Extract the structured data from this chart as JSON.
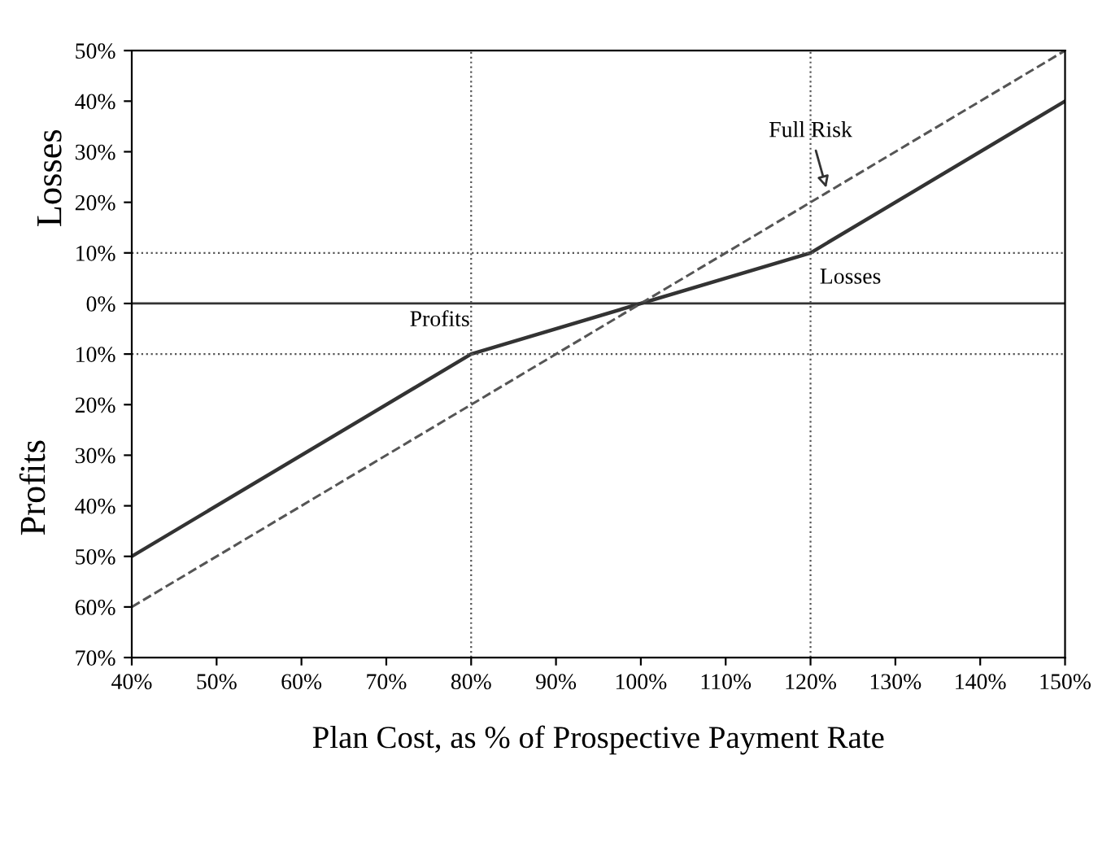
{
  "chart_data": {
    "type": "line",
    "xlabel": "Plan Cost, as % of Prospective Payment Rate",
    "ylabel": "Profits",
    "series": [
      {
        "x": [
          40,
          80,
          120,
          150
        ],
        "values": [
          -50,
          -10,
          10,
          40
        ],
        "color": "#333333",
        "line_style": "solid"
      },
      {
        "x": [
          40,
          150
        ],
        "values": [
          -60,
          50
        ],
        "color": "#555555",
        "line_style": "dashed"
      }
    ],
    "xlim": [
      40,
      150
    ],
    "ylim": [
      -70,
      50
    ],
    "xticks": [
      {
        "value": 40,
        "label": "40%"
      },
      {
        "value": 50,
        "label": "50%"
      },
      {
        "value": 60,
        "label": "60%"
      },
      {
        "value": 70,
        "label": "70%"
      },
      {
        "value": 80,
        "label": "80%"
      },
      {
        "value": 90,
        "label": "90%"
      },
      {
        "value": 100,
        "label": "100%"
      },
      {
        "value": 110,
        "label": "110%"
      },
      {
        "value": 120,
        "label": "120%"
      },
      {
        "value": 130,
        "label": "130%"
      },
      {
        "value": 140,
        "label": "140%"
      },
      {
        "value": 150,
        "label": "150%"
      }
    ],
    "yticks": [
      {
        "value": 50,
        "label": "50%"
      },
      {
        "value": 40,
        "label": "40%"
      },
      {
        "value": 30,
        "label": "30%"
      },
      {
        "value": 20,
        "label": "20%"
      },
      {
        "value": 10,
        "label": "10%"
      },
      {
        "value": 0,
        "label": "0%"
      },
      {
        "value": -10,
        "label": "10%"
      },
      {
        "value": -20,
        "label": "20%"
      },
      {
        "value": -30,
        "label": "30%"
      },
      {
        "value": -40,
        "label": "40%"
      },
      {
        "value": -50,
        "label": "50%"
      },
      {
        "value": -60,
        "label": "60%"
      },
      {
        "value": -70,
        "label": "70%"
      }
    ],
    "ref_lines": [
      {
        "axis": "y",
        "value": 0,
        "line_style": "solid",
        "color": "#333333"
      },
      {
        "axis": "y",
        "value": 10,
        "line_style": "dotted",
        "color": "#555555"
      },
      {
        "axis": "y",
        "value": -10,
        "line_style": "dotted",
        "color": "#555555"
      },
      {
        "axis": "x",
        "value": 80,
        "line_style": "dotted",
        "color": "#555555"
      },
      {
        "axis": "x",
        "value": 120,
        "line_style": "dotted",
        "color": "#555555"
      }
    ],
    "annotations": [
      "Losses",
      {
        "text": "Full Risk",
        "x": 122,
        "y": 22
      },
      "Losses",
      "Profits"
    ],
    "grid": false,
    "legend": false
  }
}
